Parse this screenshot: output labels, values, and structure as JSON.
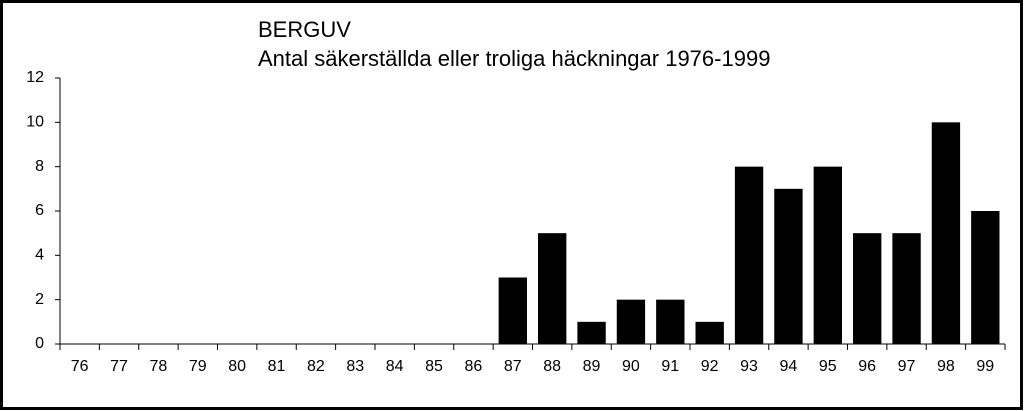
{
  "chart_data": {
    "type": "bar",
    "title": "BERGUV",
    "subtitle": "Antal säkerställda eller troliga häckningar 1976-1999",
    "categories": [
      "76",
      "77",
      "78",
      "79",
      "80",
      "81",
      "82",
      "83",
      "84",
      "85",
      "86",
      "87",
      "88",
      "89",
      "90",
      "91",
      "92",
      "93",
      "94",
      "95",
      "96",
      "97",
      "98",
      "99"
    ],
    "values": [
      0,
      0,
      0,
      0,
      0,
      0,
      0,
      0,
      0,
      0,
      0,
      3,
      5,
      1,
      2,
      2,
      1,
      8,
      7,
      8,
      5,
      5,
      10,
      6
    ],
    "color": "#000000",
    "ylim": [
      0,
      12
    ],
    "yticks": [
      0,
      2,
      4,
      6,
      8,
      10,
      12
    ],
    "grid": false
  }
}
